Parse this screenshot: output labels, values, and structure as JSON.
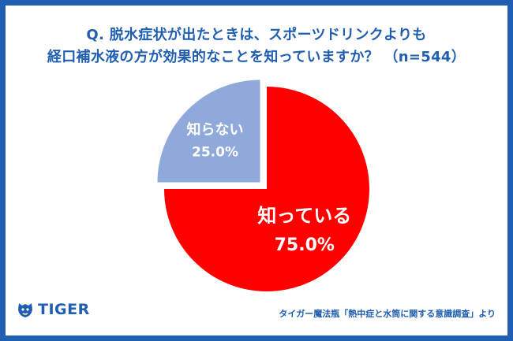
{
  "title_lines": [
    "Q. 脱水症状が出たときは、スポーツドリンクよりも",
    "経口補水液の方が効果的なことを知っていますか？ （n=544）"
  ],
  "chart_data": {
    "type": "pie",
    "slices": [
      {
        "label": "知っている",
        "value": 75.0,
        "value_label": "75.0%",
        "color": "#ff0000"
      },
      {
        "label": "知らない",
        "value": 25.0,
        "value_label": "25.0%",
        "color": "#8fa9db"
      }
    ]
  },
  "logo": {
    "text": "TIGER",
    "icon": "tiger-head-icon"
  },
  "source": "タイガー魔法瓶「熱中症と水筒に関する意識調査」より"
}
